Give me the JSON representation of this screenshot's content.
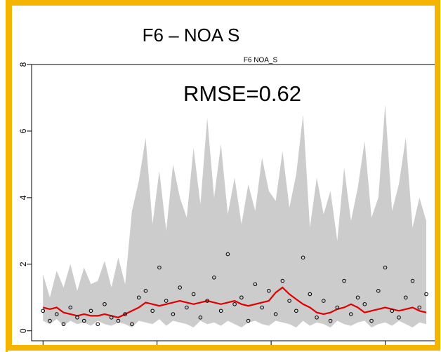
{
  "chart_data": {
    "type": "band-line",
    "title": "F6 – NOA S",
    "subtitle": "F6 NOA_S",
    "annotation": "RMSE=0.62",
    "x": [
      0,
      3,
      6,
      9,
      12,
      15,
      18,
      21,
      24,
      27,
      30,
      33,
      36,
      39,
      42,
      45,
      48,
      51,
      54,
      57,
      60,
      63,
      66,
      69,
      72,
      75,
      78,
      81,
      84,
      87,
      90,
      93,
      96,
      99,
      102,
      105,
      108,
      111,
      114,
      117,
      120,
      123,
      126,
      129,
      132,
      135,
      138,
      141,
      144,
      147,
      150,
      153,
      156,
      159,
      162,
      165,
      168
    ],
    "upper": [
      1.7,
      1.0,
      1.8,
      1.3,
      2.0,
      1.2,
      1.9,
      1.4,
      1.5,
      2.1,
      1.3,
      2.2,
      1.4,
      3.6,
      4.5,
      5.8,
      3.2,
      4.8,
      3.0,
      5.0,
      4.0,
      3.4,
      5.5,
      3.8,
      6.4,
      4.0,
      5.6,
      3.5,
      4.6,
      3.2,
      4.4,
      3.6,
      5.2,
      4.2,
      3.9,
      5.4,
      3.7,
      4.7,
      6.5,
      3.1,
      4.6,
      3.5,
      4.2,
      2.7,
      4.9,
      3.3,
      4.3,
      5.7,
      3.4,
      4.0,
      6.8,
      3.6,
      4.4,
      5.8,
      3.1,
      4.0,
      3.3
    ],
    "lower": [
      0.3,
      0.2,
      0.35,
      0.15,
      0.3,
      0.2,
      0.25,
      0.15,
      0.3,
      0.2,
      0.15,
      0.25,
      0.2,
      0.1,
      0.3,
      0.25,
      0.2,
      0.35,
      0.15,
      0.3,
      0.25,
      0.2,
      0.1,
      0.3,
      0.2,
      0.25,
      0.15,
      0.3,
      0.2,
      0.1,
      0.25,
      0.3,
      0.2,
      0.15,
      0.3,
      0.25,
      0.2,
      0.1,
      0.3,
      0.15,
      0.25,
      0.2,
      0.1,
      0.3,
      0.2,
      0.15,
      0.25,
      0.3,
      0.1,
      0.2,
      0.25,
      0.15,
      0.3,
      0.2,
      0.1,
      0.25,
      0.2
    ],
    "mean": [
      0.7,
      0.65,
      0.7,
      0.55,
      0.5,
      0.45,
      0.5,
      0.45,
      0.45,
      0.5,
      0.45,
      0.4,
      0.5,
      0.6,
      0.7,
      0.85,
      0.8,
      0.75,
      0.8,
      0.85,
      0.9,
      0.85,
      0.8,
      0.85,
      0.9,
      0.85,
      0.8,
      0.85,
      0.9,
      0.8,
      0.75,
      0.8,
      0.85,
      0.9,
      1.15,
      1.3,
      1.1,
      0.95,
      0.8,
      0.7,
      0.55,
      0.5,
      0.55,
      0.65,
      0.7,
      0.8,
      0.7,
      0.55,
      0.6,
      0.65,
      0.7,
      0.65,
      0.6,
      0.65,
      0.7,
      0.6,
      0.55
    ],
    "observed": [
      0.6,
      0.3,
      0.5,
      0.2,
      0.7,
      0.4,
      0.3,
      0.6,
      0.2,
      0.8,
      0.4,
      0.3,
      0.5,
      0.2,
      1.0,
      1.2,
      0.6,
      1.9,
      0.9,
      0.5,
      1.3,
      0.7,
      1.1,
      0.4,
      0.9,
      1.6,
      0.6,
      2.3,
      0.8,
      1.0,
      0.3,
      1.4,
      0.7,
      1.2,
      0.5,
      1.5,
      0.9,
      0.6,
      2.2,
      1.1,
      0.4,
      0.9,
      0.3,
      0.7,
      1.5,
      0.5,
      1.0,
      0.8,
      0.3,
      1.2,
      1.9,
      0.6,
      0.4,
      1.0,
      1.5,
      0.7,
      1.1
    ],
    "band_color": "#cccccc",
    "line_color": "#e00000",
    "point_color": "#000000",
    "xlim": [
      -5,
      172
    ],
    "xticks": [
      0,
      50,
      100,
      150
    ],
    "ylim": [
      -0.3,
      8
    ],
    "yticks": [
      0,
      2,
      4,
      6,
      8
    ]
  }
}
